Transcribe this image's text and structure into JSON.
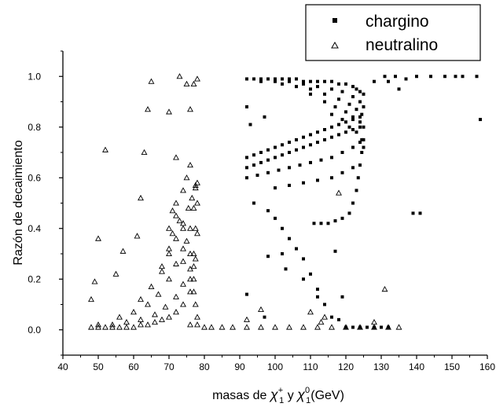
{
  "chart_data": {
    "type": "scatter",
    "xlabel_prefix": "masas de ",
    "xlabel_chi": "χ",
    "xlabel_plus": "+",
    "xlabel_one": "1",
    "xlabel_and": "y ",
    "xlabel_zero": "0",
    "xlabel_unit": "(GeV)",
    "ylabel": "Razón de decaimiento",
    "xlim": [
      40,
      160
    ],
    "ylim": [
      -0.1,
      1.1
    ],
    "x_ticks": [
      40,
      50,
      60,
      70,
      80,
      90,
      100,
      110,
      120,
      130,
      140,
      150,
      160
    ],
    "y_ticks": [
      0.0,
      0.2,
      0.4,
      0.6,
      0.8,
      1.0
    ],
    "y_tick_labels": [
      "0.0",
      "0.2",
      "0.4",
      "0.6",
      "0.8",
      "1.0"
    ],
    "legend_position": "top-right",
    "series": [
      {
        "name": "chargino",
        "marker": "square",
        "points": [
          [
            92,
            0.99
          ],
          [
            94,
            0.99
          ],
          [
            96,
            0.99
          ],
          [
            98,
            0.99
          ],
          [
            100,
            0.99
          ],
          [
            102,
            0.99
          ],
          [
            104,
            0.99
          ],
          [
            106,
            0.99
          ],
          [
            108,
            0.98
          ],
          [
            110,
            0.98
          ],
          [
            112,
            0.98
          ],
          [
            114,
            0.98
          ],
          [
            116,
            0.98
          ],
          [
            118,
            0.97
          ],
          [
            120,
            0.97
          ],
          [
            122,
            0.96
          ],
          [
            123,
            0.95
          ],
          [
            124,
            0.94
          ],
          [
            125,
            0.93
          ],
          [
            96,
            0.98
          ],
          [
            100,
            0.98
          ],
          [
            104,
            0.98
          ],
          [
            108,
            0.97
          ],
          [
            112,
            0.96
          ],
          [
            116,
            0.95
          ],
          [
            119,
            0.94
          ],
          [
            122,
            0.92
          ],
          [
            124,
            0.9
          ],
          [
            125,
            0.88
          ],
          [
            102,
            0.97
          ],
          [
            106,
            0.96
          ],
          [
            110,
            0.95
          ],
          [
            114,
            0.93
          ],
          [
            118,
            0.91
          ],
          [
            121,
            0.89
          ],
          [
            123,
            0.87
          ],
          [
            124.5,
            0.85
          ],
          [
            110,
            0.93
          ],
          [
            114,
            0.9
          ],
          [
            117,
            0.88
          ],
          [
            120,
            0.86
          ],
          [
            122,
            0.84
          ],
          [
            124,
            0.82
          ],
          [
            125,
            0.8
          ],
          [
            116,
            0.85
          ],
          [
            119,
            0.83
          ],
          [
            121,
            0.8
          ],
          [
            123,
            0.78
          ],
          [
            124.5,
            0.75
          ],
          [
            125,
            0.72
          ],
          [
            92,
            0.68
          ],
          [
            94,
            0.69
          ],
          [
            96,
            0.7
          ],
          [
            98,
            0.71
          ],
          [
            100,
            0.72
          ],
          [
            102,
            0.73
          ],
          [
            104,
            0.74
          ],
          [
            106,
            0.75
          ],
          [
            108,
            0.76
          ],
          [
            110,
            0.77
          ],
          [
            112,
            0.78
          ],
          [
            114,
            0.79
          ],
          [
            116,
            0.8
          ],
          [
            118,
            0.81
          ],
          [
            120,
            0.82
          ],
          [
            122,
            0.83
          ],
          [
            124,
            0.84
          ],
          [
            92,
            0.64
          ],
          [
            94,
            0.65
          ],
          [
            96,
            0.66
          ],
          [
            98,
            0.67
          ],
          [
            100,
            0.68
          ],
          [
            102,
            0.69
          ],
          [
            104,
            0.7
          ],
          [
            106,
            0.71
          ],
          [
            108,
            0.72
          ],
          [
            110,
            0.73
          ],
          [
            112,
            0.74
          ],
          [
            114,
            0.75
          ],
          [
            116,
            0.76
          ],
          [
            118,
            0.77
          ],
          [
            120,
            0.78
          ],
          [
            122,
            0.79
          ],
          [
            124,
            0.8
          ],
          [
            92,
            0.6
          ],
          [
            95,
            0.61
          ],
          [
            98,
            0.62
          ],
          [
            101,
            0.63
          ],
          [
            104,
            0.64
          ],
          [
            107,
            0.65
          ],
          [
            110,
            0.66
          ],
          [
            113,
            0.67
          ],
          [
            116,
            0.68
          ],
          [
            119,
            0.7
          ],
          [
            122,
            0.72
          ],
          [
            124,
            0.74
          ],
          [
            100,
            0.56
          ],
          [
            104,
            0.57
          ],
          [
            108,
            0.58
          ],
          [
            112,
            0.59
          ],
          [
            116,
            0.6
          ],
          [
            119,
            0.62
          ],
          [
            122,
            0.64
          ],
          [
            111,
            0.42
          ],
          [
            113,
            0.42
          ],
          [
            115,
            0.42
          ],
          [
            117,
            0.43
          ],
          [
            119,
            0.44
          ],
          [
            121,
            0.46
          ],
          [
            122,
            0.5
          ],
          [
            123,
            0.55
          ],
          [
            123.5,
            0.6
          ],
          [
            124,
            0.65
          ],
          [
            124.5,
            0.7
          ],
          [
            125,
            0.75
          ],
          [
            94,
            0.5
          ],
          [
            98,
            0.47
          ],
          [
            100,
            0.44
          ],
          [
            102,
            0.4
          ],
          [
            104,
            0.36
          ],
          [
            106,
            0.32
          ],
          [
            108,
            0.28
          ],
          [
            110,
            0.22
          ],
          [
            112,
            0.16
          ],
          [
            114,
            0.1
          ],
          [
            116,
            0.05
          ],
          [
            92,
            0.14
          ],
          [
            97,
            0.05
          ],
          [
            98,
            0.29
          ],
          [
            102,
            0.3
          ],
          [
            103,
            0.24
          ],
          [
            108,
            0.2
          ],
          [
            112,
            0.13
          ],
          [
            117,
            0.31
          ],
          [
            118,
            0.04
          ],
          [
            119,
            0.13
          ],
          [
            92,
            0.88
          ],
          [
            93,
            0.81
          ],
          [
            97,
            0.84
          ],
          [
            120,
            0.01
          ],
          [
            122,
            0.01
          ],
          [
            124,
            0.01
          ],
          [
            126,
            0.01
          ],
          [
            128,
            0.01
          ],
          [
            130,
            0.01
          ],
          [
            132,
            0.01
          ],
          [
            128,
            0.98
          ],
          [
            131,
            1.0
          ],
          [
            132,
            0.98
          ],
          [
            134,
            1.0
          ],
          [
            135,
            0.95
          ],
          [
            137,
            0.99
          ],
          [
            140,
            1.0
          ],
          [
            144,
            1.0
          ],
          [
            148,
            1.0
          ],
          [
            151,
            1.0
          ],
          [
            153,
            1.0
          ],
          [
            157,
            1.0
          ],
          [
            158,
            0.83
          ],
          [
            139,
            0.46
          ],
          [
            141,
            0.46
          ]
        ]
      },
      {
        "name": "neutralino",
        "marker": "triangle",
        "points": [
          [
            48,
            0.12
          ],
          [
            49,
            0.19
          ],
          [
            50,
            0.36
          ],
          [
            52,
            0.71
          ],
          [
            55,
            0.22
          ],
          [
            57,
            0.31
          ],
          [
            61,
            0.37
          ],
          [
            62,
            0.52
          ],
          [
            63,
            0.7
          ],
          [
            64,
            0.87
          ],
          [
            65,
            0.98
          ],
          [
            70,
            0.86
          ],
          [
            72,
            0.68
          ],
          [
            73,
            1.0
          ],
          [
            75,
            0.97
          ],
          [
            76,
            0.87
          ],
          [
            77,
            0.97
          ],
          [
            78,
            0.99
          ],
          [
            48,
            0.01
          ],
          [
            50,
            0.01
          ],
          [
            52,
            0.01
          ],
          [
            54,
            0.01
          ],
          [
            56,
            0.01
          ],
          [
            58,
            0.01
          ],
          [
            60,
            0.01
          ],
          [
            62,
            0.02
          ],
          [
            64,
            0.02
          ],
          [
            66,
            0.03
          ],
          [
            68,
            0.04
          ],
          [
            70,
            0.05
          ],
          [
            72,
            0.07
          ],
          [
            74,
            0.1
          ],
          [
            76,
            0.15
          ],
          [
            77,
            0.2
          ],
          [
            77.5,
            0.28
          ],
          [
            78,
            0.38
          ],
          [
            50,
            0.02
          ],
          [
            54,
            0.02
          ],
          [
            58,
            0.03
          ],
          [
            62,
            0.04
          ],
          [
            66,
            0.06
          ],
          [
            69,
            0.09
          ],
          [
            72,
            0.13
          ],
          [
            74,
            0.18
          ],
          [
            76,
            0.24
          ],
          [
            77,
            0.3
          ],
          [
            77.5,
            0.4
          ],
          [
            78,
            0.5
          ],
          [
            56,
            0.05
          ],
          [
            60,
            0.07
          ],
          [
            64,
            0.1
          ],
          [
            67,
            0.14
          ],
          [
            70,
            0.2
          ],
          [
            72,
            0.26
          ],
          [
            74,
            0.32
          ],
          [
            76,
            0.4
          ],
          [
            77,
            0.48
          ],
          [
            77.5,
            0.56
          ],
          [
            78,
            0.58
          ],
          [
            62,
            0.12
          ],
          [
            65,
            0.17
          ],
          [
            68,
            0.23
          ],
          [
            70,
            0.3
          ],
          [
            72,
            0.36
          ],
          [
            74,
            0.42
          ],
          [
            75.5,
            0.48
          ],
          [
            76.5,
            0.52
          ],
          [
            77.5,
            0.57
          ],
          [
            68,
            0.25
          ],
          [
            70,
            0.32
          ],
          [
            71,
            0.38
          ],
          [
            72,
            0.45
          ],
          [
            73,
            0.43
          ],
          [
            74,
            0.4
          ],
          [
            75,
            0.35
          ],
          [
            76,
            0.3
          ],
          [
            77,
            0.25
          ],
          [
            70,
            0.4
          ],
          [
            71,
            0.47
          ],
          [
            72,
            0.5
          ],
          [
            74,
            0.55
          ],
          [
            75,
            0.6
          ],
          [
            76,
            0.65
          ],
          [
            74,
            0.27
          ],
          [
            76,
            0.2
          ],
          [
            77,
            0.15
          ],
          [
            77.5,
            0.1
          ],
          [
            78,
            0.05
          ],
          [
            76,
            0.02
          ],
          [
            78,
            0.02
          ],
          [
            80,
            0.01
          ],
          [
            85,
            0.01
          ],
          [
            88,
            0.01
          ],
          [
            92,
            0.01
          ],
          [
            96,
            0.01
          ],
          [
            100,
            0.01
          ],
          [
            104,
            0.01
          ],
          [
            108,
            0.01
          ],
          [
            112,
            0.01
          ],
          [
            116,
            0.01
          ],
          [
            120,
            0.01
          ],
          [
            124,
            0.01
          ],
          [
            128,
            0.01
          ],
          [
            132,
            0.01
          ],
          [
            135,
            0.01
          ],
          [
            92,
            0.04
          ],
          [
            96,
            0.08
          ],
          [
            110,
            0.07
          ],
          [
            114,
            0.05
          ],
          [
            118,
            0.54
          ],
          [
            128,
            0.03
          ],
          [
            131,
            0.16
          ],
          [
            113,
            0.03
          ],
          [
            82,
            0.01
          ]
        ]
      }
    ]
  }
}
